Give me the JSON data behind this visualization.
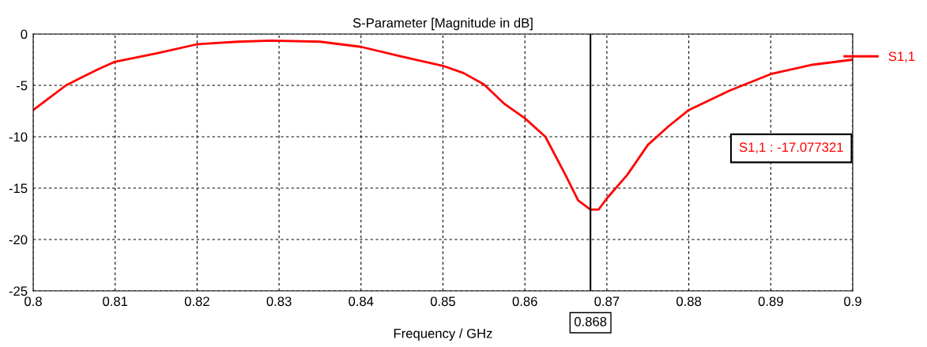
{
  "chart_data": {
    "type": "line",
    "title": "S-Parameter [Magnitude in dB]",
    "xlabel": "Frequency / GHz",
    "x": [
      0.8,
      0.802,
      0.804,
      0.806,
      0.808,
      0.81,
      0.815,
      0.82,
      0.825,
      0.829,
      0.835,
      0.84,
      0.845,
      0.85,
      0.8525,
      0.855,
      0.8575,
      0.86,
      0.8625,
      0.865,
      0.8665,
      0.868,
      0.869,
      0.87,
      0.8725,
      0.875,
      0.8775,
      0.88,
      0.885,
      0.89,
      0.895,
      0.9
    ],
    "series": [
      {
        "name": "S1,1",
        "color": "#ff0000",
        "values": [
          -7.4,
          -6.2,
          -5.0,
          -4.2,
          -3.4,
          -2.7,
          -1.9,
          -1.0,
          -0.75,
          -0.65,
          -0.75,
          -1.25,
          -2.2,
          -3.1,
          -3.8,
          -4.9,
          -6.8,
          -8.2,
          -10.0,
          -13.8,
          -16.2,
          -17.08,
          -17.08,
          -16.0,
          -13.7,
          -10.8,
          -9.0,
          -7.4,
          -5.5,
          -3.9,
          -3.0,
          -2.5
        ]
      }
    ],
    "xlim": [
      0.8,
      0.9
    ],
    "xticks": [
      0.8,
      0.81,
      0.82,
      0.83,
      0.84,
      0.85,
      0.86,
      0.87,
      0.88,
      0.89,
      0.9
    ],
    "ylim": [
      -25,
      0
    ],
    "yticks": [
      -25,
      -20,
      -15,
      -10,
      -5,
      0
    ],
    "grid": true,
    "legend": "top right",
    "marker": "none",
    "line_style": "solid",
    "ref_lines": [
      {
        "axis": "x",
        "value": 0.868,
        "label": "0.868",
        "color": "#000000"
      }
    ],
    "annotations": [
      "S1,1 : -17.077321"
    ]
  }
}
